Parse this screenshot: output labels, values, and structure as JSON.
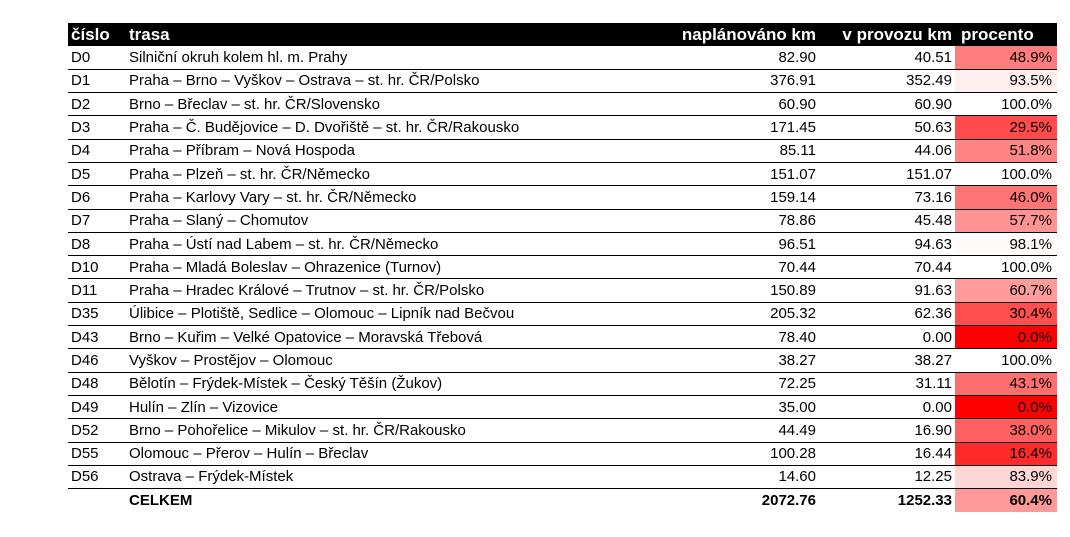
{
  "headers": {
    "number": "číslo",
    "route": "trasa",
    "planned": "naplánováno km",
    "operating": "v provozu km",
    "percent": "procento"
  },
  "rows": [
    {
      "id": "D0",
      "route": "Silniční okruh kolem hl. m. Prahy",
      "planned": "82.90",
      "operating": "40.51",
      "percent": "48.9%",
      "pct_value": 48.9
    },
    {
      "id": "D1",
      "route": "Praha – Brno – Vyškov – Ostrava – st. hr. ČR/Polsko",
      "planned": "376.91",
      "operating": "352.49",
      "percent": "93.5%",
      "pct_value": 93.5
    },
    {
      "id": "D2",
      "route": "Brno – Břeclav – st. hr. ČR/Slovensko",
      "planned": "60.90",
      "operating": "60.90",
      "percent": "100.0%",
      "pct_value": 100.0
    },
    {
      "id": "D3",
      "route": "Praha – Č. Budějovice – D. Dvořiště – st. hr. ČR/Rakousko",
      "planned": "171.45",
      "operating": "50.63",
      "percent": "29.5%",
      "pct_value": 29.5
    },
    {
      "id": "D4",
      "route": "Praha – Příbram – Nová Hospoda",
      "planned": "85.11",
      "operating": "44.06",
      "percent": "51.8%",
      "pct_value": 51.8
    },
    {
      "id": "D5",
      "route": "Praha – Plzeň – st. hr. ČR/Německo",
      "planned": "151.07",
      "operating": "151.07",
      "percent": "100.0%",
      "pct_value": 100.0
    },
    {
      "id": "D6",
      "route": "Praha – Karlovy Vary – st. hr. ČR/Německo",
      "planned": "159.14",
      "operating": "73.16",
      "percent": "46.0%",
      "pct_value": 46.0
    },
    {
      "id": "D7",
      "route": "Praha – Slaný – Chomutov",
      "planned": "78.86",
      "operating": "45.48",
      "percent": "57.7%",
      "pct_value": 57.7
    },
    {
      "id": "D8",
      "route": "Praha – Ústí nad Labem – st. hr. ČR/Německo",
      "planned": "96.51",
      "operating": "94.63",
      "percent": "98.1%",
      "pct_value": 98.1
    },
    {
      "id": "D10",
      "route": "Praha – Mladá Boleslav – Ohrazenice (Turnov)",
      "planned": "70.44",
      "operating": "70.44",
      "percent": "100.0%",
      "pct_value": 100.0
    },
    {
      "id": "D11",
      "route": "Praha – Hradec Králové – Trutnov – st. hr. ČR/Polsko",
      "planned": "150.89",
      "operating": "91.63",
      "percent": "60.7%",
      "pct_value": 60.7
    },
    {
      "id": "D35",
      "route": "Úlibice – Plotiště, Sedlice – Olomouc – Lipník nad Bečvou",
      "planned": "205.32",
      "operating": "62.36",
      "percent": "30.4%",
      "pct_value": 30.4
    },
    {
      "id": "D43",
      "route": "Brno – Kuřim – Velké Opatovice – Moravská Třebová",
      "planned": "78.40",
      "operating": "0.00",
      "percent": "0.0%",
      "pct_value": 0.0
    },
    {
      "id": "D46",
      "route": "Vyškov – Prostějov – Olomouc",
      "planned": "38.27",
      "operating": "38.27",
      "percent": "100.0%",
      "pct_value": 100.0
    },
    {
      "id": "D48",
      "route": "Bělotín – Frýdek-Místek – Český Těšín (Žukov)",
      "planned": "72.25",
      "operating": "31.11",
      "percent": "43.1%",
      "pct_value": 43.1
    },
    {
      "id": "D49",
      "route": "Hulín – Zlín – Vizovice",
      "planned": "35.00",
      "operating": "0.00",
      "percent": "0.0%",
      "pct_value": 0.0
    },
    {
      "id": "D52",
      "route": "Brno – Pohořelice – Mikulov – st. hr. ČR/Rakousko",
      "planned": "44.49",
      "operating": "16.90",
      "percent": "38.0%",
      "pct_value": 38.0
    },
    {
      "id": "D55",
      "route": "Olomouc – Přerov – Hulín – Břeclav",
      "planned": "100.28",
      "operating": "16.44",
      "percent": "16.4%",
      "pct_value": 16.4
    },
    {
      "id": "D56",
      "route": "Ostrava – Frýdek-Místek",
      "planned": "14.60",
      "operating": "12.25",
      "percent": "83.9%",
      "pct_value": 83.9
    }
  ],
  "total": {
    "label": "CELKEM",
    "planned": "2072.76",
    "operating": "1252.33",
    "percent": "60.4%",
    "pct_value": 60.4
  },
  "colors": {
    "header_bg": "#000000",
    "header_text": "#ffffff",
    "scale_low": "#ff0000",
    "scale_high": "#ffffff"
  }
}
